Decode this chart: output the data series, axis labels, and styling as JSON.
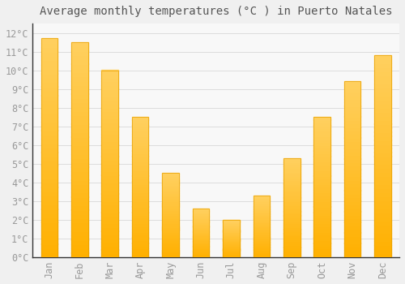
{
  "months": [
    "Jan",
    "Feb",
    "Mar",
    "Apr",
    "May",
    "Jun",
    "Jul",
    "Aug",
    "Sep",
    "Oct",
    "Nov",
    "Dec"
  ],
  "values": [
    11.7,
    11.5,
    10.0,
    7.5,
    4.5,
    2.6,
    2.0,
    3.3,
    5.3,
    7.5,
    9.4,
    10.8
  ],
  "bar_color_top": "#FFC020",
  "bar_color_bottom": "#FFB000",
  "bar_edge_color": "#E8A000",
  "title": "Average monthly temperatures (°C ) in Puerto Natales",
  "ylim": [
    0,
    12.5
  ],
  "ytick_max": 12,
  "background_color": "#F0F0F0",
  "plot_bg_color": "#F8F8F8",
  "grid_color": "#DDDDDD",
  "title_fontsize": 10,
  "tick_fontsize": 8.5,
  "tick_label_color": "#999999",
  "title_color": "#555555",
  "bar_width": 0.55,
  "left_spine_color": "#333333"
}
